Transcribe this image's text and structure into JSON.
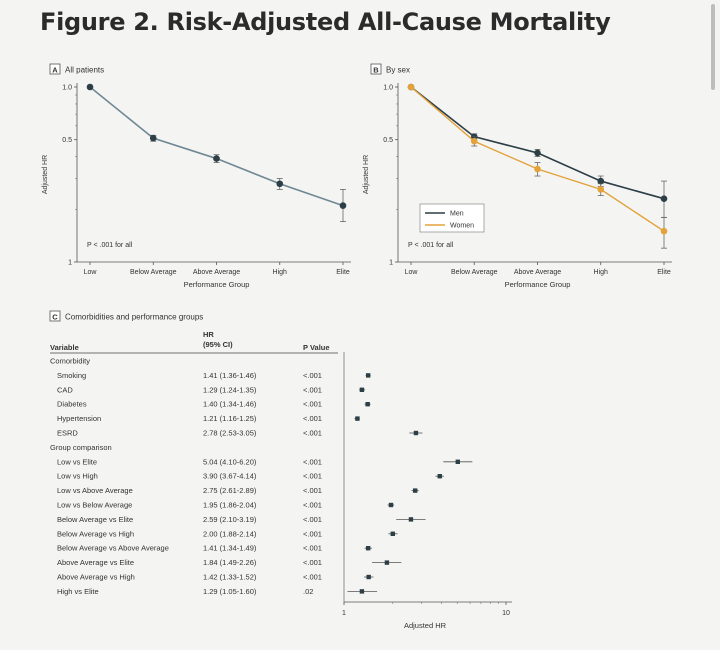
{
  "figure": {
    "title": "Figure 2.  Risk-Adjusted All-Cause Mortality"
  },
  "colors": {
    "dot": "#2c3e46",
    "line": "#6f8894",
    "women": "#e3a23a",
    "ci": "#555555"
  },
  "chart_data": [
    {
      "panel": "A",
      "type": "line",
      "title": "All patients",
      "categories": [
        "Low",
        "Below Average",
        "Above Average",
        "High",
        "Elite"
      ],
      "xlabel": "Performance Group",
      "ylabel": "Adjusted HR",
      "y_ticks": [
        "1.0",
        "0.5",
        "1"
      ],
      "annotation": "P < .001 for all",
      "series": [
        {
          "values": [
            1.0,
            0.51,
            0.39,
            0.28,
            0.21
          ],
          "ci_low": [
            1.0,
            0.49,
            0.37,
            0.26,
            0.17
          ],
          "ci_high": [
            1.0,
            0.53,
            0.41,
            0.3,
            0.26
          ]
        }
      ]
    },
    {
      "panel": "B",
      "type": "line",
      "title": "By sex",
      "categories": [
        "Low",
        "Below Average",
        "Above Average",
        "High",
        "Elite"
      ],
      "xlabel": "Performance Group",
      "ylabel": "Adjusted HR",
      "y_ticks": [
        "1.0",
        "0.5",
        "1"
      ],
      "annotation": "P < .001 for all",
      "legend": "bottom-left",
      "series": [
        {
          "name": "Men",
          "values": [
            1.0,
            0.52,
            0.42,
            0.29,
            0.23
          ],
          "ci_low": [
            1.0,
            0.5,
            0.4,
            0.27,
            0.18
          ],
          "ci_high": [
            1.0,
            0.54,
            0.44,
            0.31,
            0.29
          ]
        },
        {
          "name": "Women",
          "values": [
            1.0,
            0.49,
            0.34,
            0.26,
            0.15
          ],
          "ci_low": [
            1.0,
            0.46,
            0.31,
            0.24,
            0.12
          ],
          "ci_high": [
            1.0,
            0.52,
            0.37,
            0.28,
            0.18
          ]
        }
      ]
    },
    {
      "panel": "C",
      "type": "scatter",
      "title": "Comorbidities and performance groups",
      "columns": {
        "variable": "Variable",
        "hr_line1": "HR",
        "hr_line2": "(95% CI)",
        "p": "P Value"
      },
      "xlabel": "Adjusted HR",
      "x_scale": "log",
      "x_ticks": [
        {
          "value": 1,
          "label": "1"
        },
        {
          "value": 10,
          "label": "10"
        }
      ],
      "rows": [
        {
          "kind": "header",
          "label": "Comorbidity"
        },
        {
          "kind": "item",
          "label": "Smoking",
          "hr_text": "1.41 (1.36-1.46)",
          "p": "<.001",
          "hr": 1.41,
          "lo": 1.36,
          "hi": 1.46
        },
        {
          "kind": "item",
          "label": "CAD",
          "hr_text": "1.29 (1.24-1.35)",
          "p": "<.001",
          "hr": 1.29,
          "lo": 1.24,
          "hi": 1.35
        },
        {
          "kind": "item",
          "label": "Diabetes",
          "hr_text": "1.40 (1.34-1.46)",
          "p": "<.001",
          "hr": 1.4,
          "lo": 1.34,
          "hi": 1.46
        },
        {
          "kind": "item",
          "label": "Hypertension",
          "hr_text": "1.21 (1.16-1.25)",
          "p": "<.001",
          "hr": 1.21,
          "lo": 1.16,
          "hi": 1.25
        },
        {
          "kind": "item",
          "label": "ESRD",
          "hr_text": "2.78 (2.53-3.05)",
          "p": "<.001",
          "hr": 2.78,
          "lo": 2.53,
          "hi": 3.05
        },
        {
          "kind": "header",
          "label": "Group comparison"
        },
        {
          "kind": "item",
          "label": "Low vs Elite",
          "hr_text": "5.04 (4.10-6.20)",
          "p": "<.001",
          "hr": 5.04,
          "lo": 4.1,
          "hi": 6.2
        },
        {
          "kind": "item",
          "label": "Low vs High",
          "hr_text": "3.90 (3.67-4.14)",
          "p": "<.001",
          "hr": 3.9,
          "lo": 3.67,
          "hi": 4.14
        },
        {
          "kind": "item",
          "label": "Low vs Above Average",
          "hr_text": "2.75 (2.61-2.89)",
          "p": "<.001",
          "hr": 2.75,
          "lo": 2.61,
          "hi": 2.89
        },
        {
          "kind": "item",
          "label": "Low vs Below Average",
          "hr_text": "1.95 (1.86-2.04)",
          "p": "<.001",
          "hr": 1.95,
          "lo": 1.86,
          "hi": 2.04
        },
        {
          "kind": "item",
          "label": "Below Average vs Elite",
          "hr_text": "2.59 (2.10-3.19)",
          "p": "<.001",
          "hr": 2.59,
          "lo": 2.1,
          "hi": 3.19
        },
        {
          "kind": "item",
          "label": "Below Average vs High",
          "hr_text": "2.00 (1.88-2.14)",
          "p": "<.001",
          "hr": 2.0,
          "lo": 1.88,
          "hi": 2.14
        },
        {
          "kind": "item",
          "label": "Below Average vs Above Average",
          "hr_text": "1.41 (1.34-1.49)",
          "p": "<.001",
          "hr": 1.41,
          "lo": 1.34,
          "hi": 1.49
        },
        {
          "kind": "item",
          "label": "Above Average vs Elite",
          "hr_text": "1.84 (1.49-2.26)",
          "p": "<.001",
          "hr": 1.84,
          "lo": 1.49,
          "hi": 2.26
        },
        {
          "kind": "item",
          "label": "Above Average vs High",
          "hr_text": "1.42 (1.33-1.52)",
          "p": "<.001",
          "hr": 1.42,
          "lo": 1.33,
          "hi": 1.52
        },
        {
          "kind": "item",
          "label": "High vs Elite",
          "hr_text": "1.29 (1.05-1.60)",
          "p": ".02",
          "hr": 1.29,
          "lo": 1.05,
          "hi": 1.6
        }
      ]
    }
  ]
}
